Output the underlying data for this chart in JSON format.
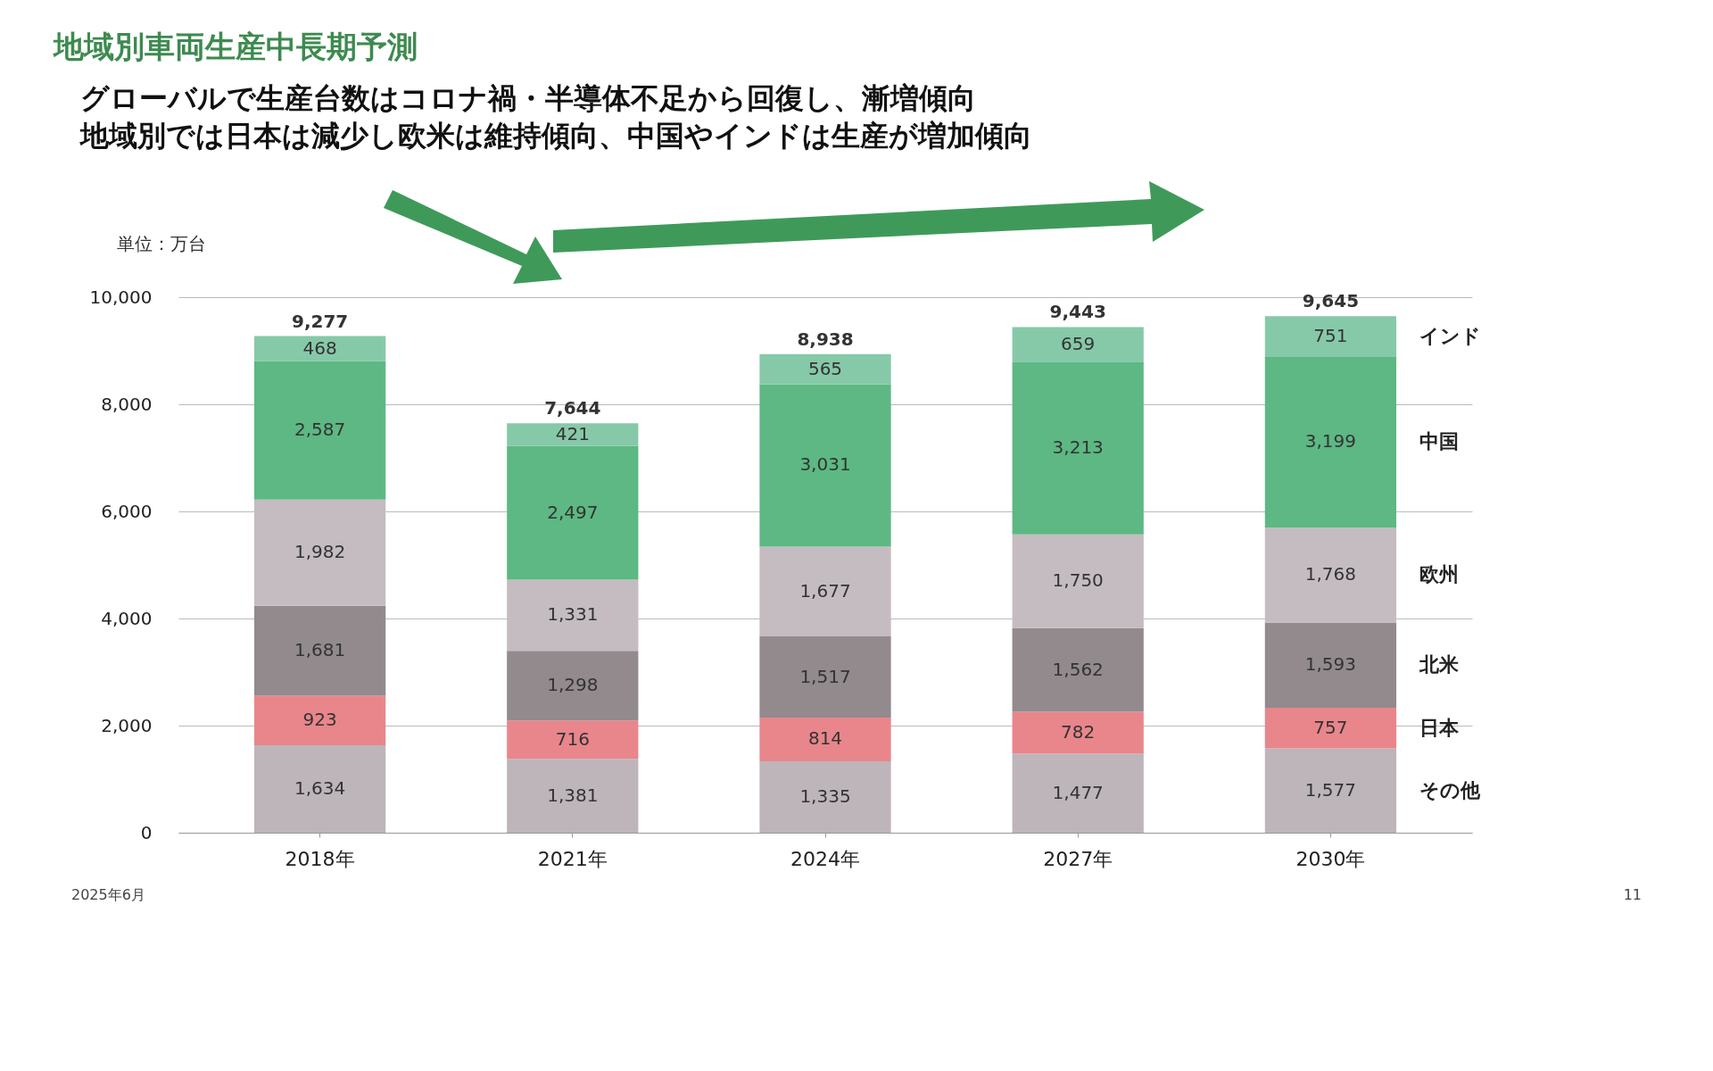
{
  "chart_data": {
    "type": "bar",
    "title": "地域別車両生産中長期予測",
    "subtitle": "グローバルで生産台数はコロナ禍・半導体不足から回復し、漸増傾向",
    "ylabel": "単位：万台",
    "categories": [
      "2018年",
      "2021年",
      "2024年",
      "2027年",
      "2030年"
    ],
    "stacked": true,
    "series": [
      {
        "name": "その他",
        "color": "#bdb5b9",
        "values": [
          1634,
          1381,
          1335,
          1477,
          1577
        ],
        "value_labels": [
          "1,634",
          "1,381",
          "1,335",
          "1,477",
          "1,577"
        ]
      },
      {
        "name": "日本",
        "color": "#e8868c",
        "values": [
          923,
          716,
          814,
          782,
          757
        ],
        "value_labels": [
          "923",
          "716",
          "814",
          "782",
          "757"
        ]
      },
      {
        "name": "北米",
        "color": "#928a8d",
        "values": [
          1681,
          1298,
          1517,
          1562,
          1593
        ],
        "value_labels": [
          "1,681",
          "1,298",
          "1,517",
          "1,562",
          "1,593"
        ]
      },
      {
        "name": "欧州",
        "color": "#c4bcc0",
        "values": [
          1982,
          1331,
          1677,
          1750,
          1768
        ],
        "value_labels": [
          "1,982",
          "1,331",
          "1,677",
          "1,750",
          "1,768"
        ]
      },
      {
        "name": "中国",
        "color": "#5db883",
        "values": [
          2587,
          2497,
          3031,
          3213,
          3199
        ],
        "value_labels": [
          "2,587",
          "2,497",
          "3,031",
          "3,213",
          "3,199"
        ]
      },
      {
        "name": "インド",
        "color": "#86c9a8",
        "values": [
          468,
          421,
          565,
          659,
          751
        ],
        "value_labels": [
          "468",
          "421",
          "565",
          "659",
          "751"
        ]
      }
    ],
    "totals": [
      "9,277",
      "7,644",
      "8,938",
      "9,443",
      "9,645"
    ],
    "ylim": [
      0,
      10000
    ],
    "yticks": [
      0,
      {
        "value": 2000,
        "label": "2,000"
      },
      {
        "value": 4000,
        "label": "4,000"
      },
      {
        "value": 6000,
        "label": "6,000"
      },
      {
        "value": 8000,
        "label": "8,000"
      },
      {
        "value": 10000,
        "label": "10,000"
      }
    ],
    "grid": "y",
    "legend": false,
    "annotations": [
      "地域別では日本は減少し欧米は維持傾向、中国やインドは生産が増加傾向",
      "2025年6月",
      "11"
    ]
  }
}
